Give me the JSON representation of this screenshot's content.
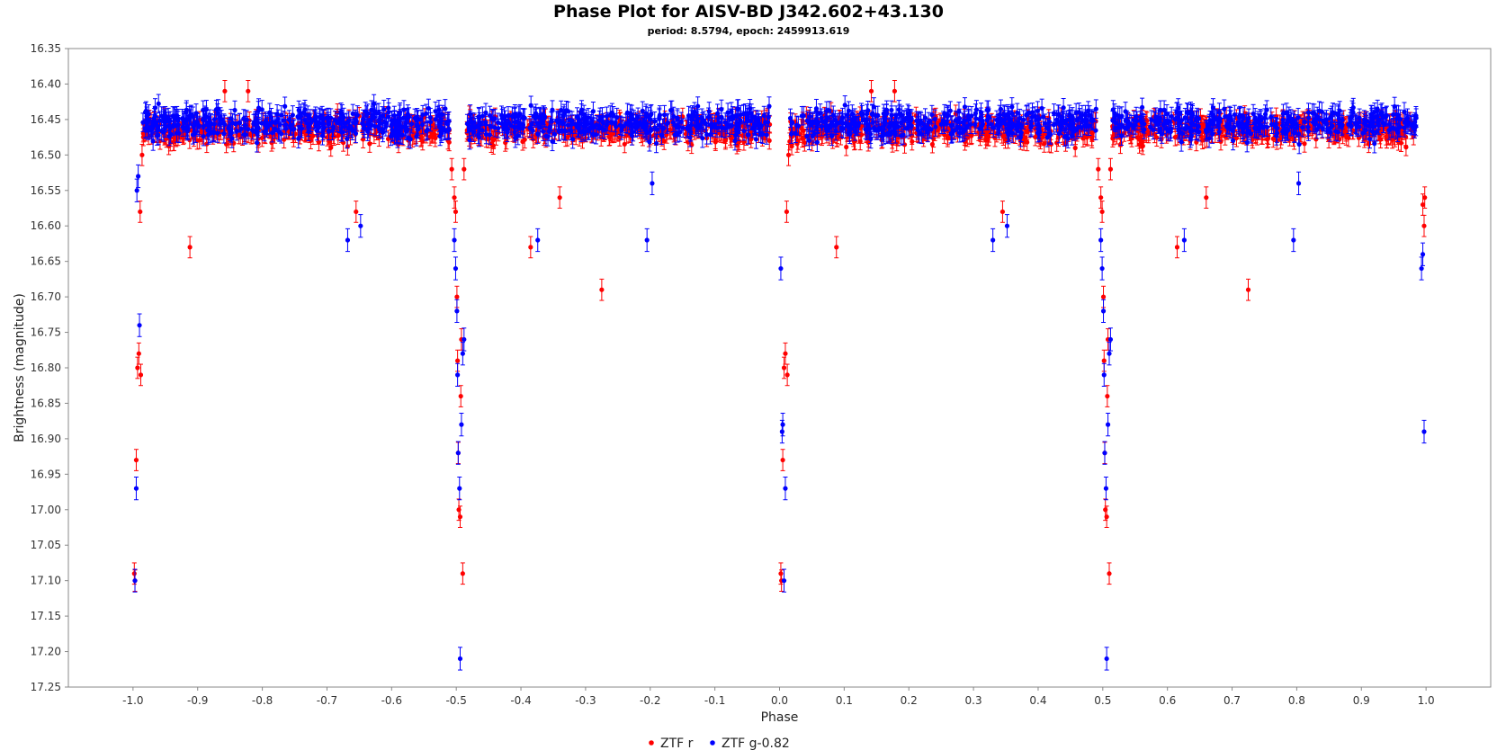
{
  "chart_data": {
    "type": "scatter",
    "title": "Phase Plot for AISV-BD J342.602+43.130",
    "subtitle": "period: 8.5794, epoch: 2459913.619",
    "xlabel": "Phase",
    "ylabel": "Brightness (magnitude)",
    "xlim": [
      -1.1,
      1.1
    ],
    "ylim": [
      16.35,
      17.25
    ],
    "y_inverted": true,
    "x_ticks": [
      -1.0,
      -0.9,
      -0.8,
      -0.7,
      -0.6,
      -0.5,
      -0.4,
      -0.3,
      -0.2,
      -0.1,
      0.0,
      0.1,
      0.2,
      0.3,
      0.4,
      0.5,
      0.6,
      0.7,
      0.8,
      0.9,
      1.0
    ],
    "x_tick_labels": [
      "-1.0",
      "-0.9",
      "-0.8",
      "-0.7",
      "-0.6",
      "-0.5",
      "-0.4",
      "-0.3",
      "-0.2",
      "-0.1",
      "0.0",
      "0.1",
      "0.2",
      "0.3",
      "0.4",
      "0.5",
      "0.6",
      "0.7",
      "0.8",
      "0.9",
      "1.0"
    ],
    "y_ticks": [
      16.35,
      16.4,
      16.45,
      16.5,
      16.55,
      16.6,
      16.65,
      16.7,
      16.75,
      16.8,
      16.85,
      16.9,
      16.95,
      17.0,
      17.05,
      17.1,
      17.15,
      17.2,
      17.25
    ],
    "y_tick_labels": [
      "16.35",
      "16.40",
      "16.45",
      "16.50",
      "16.55",
      "16.60",
      "16.65",
      "16.70",
      "16.75",
      "16.80",
      "16.85",
      "16.90",
      "16.95",
      "17.00",
      "17.05",
      "17.10",
      "17.15",
      "17.20",
      "17.25"
    ],
    "grid": false,
    "legend_position": "bottom-center",
    "series": [
      {
        "name": "ZTF r",
        "color": "#ff0000",
        "baseline_mag": 16.465,
        "scatter": 0.018,
        "error": 0.012,
        "x": [
          -0.998,
          -0.997,
          -0.995,
          -0.993,
          -0.991,
          -0.989,
          -0.988,
          -0.986,
          -0.912,
          -0.858,
          -0.822,
          -0.655,
          -0.507,
          -0.503,
          -0.501,
          -0.499,
          -0.498,
          -0.497,
          -0.496,
          -0.494,
          -0.493,
          -0.492,
          -0.49,
          -0.488,
          -0.385,
          -0.34,
          -0.275,
          0.002,
          0.003,
          0.005,
          0.007,
          0.009,
          0.011,
          0.012,
          0.014,
          0.088,
          0.142,
          0.178,
          0.345,
          0.493,
          0.497,
          0.499,
          0.501,
          0.502,
          0.503,
          0.504,
          0.506,
          0.507,
          0.508,
          0.51,
          0.512,
          0.615,
          0.66,
          0.725,
          0.995,
          0.997,
          0.998
        ],
        "y": [
          17.09,
          17.1,
          16.93,
          16.8,
          16.78,
          16.58,
          16.81,
          16.5,
          16.63,
          16.41,
          16.41,
          16.58,
          16.52,
          16.56,
          16.58,
          16.7,
          16.79,
          16.92,
          17.0,
          17.01,
          16.84,
          16.76,
          17.09,
          16.52,
          16.63,
          16.56,
          16.69,
          17.09,
          17.1,
          16.93,
          16.8,
          16.78,
          16.58,
          16.81,
          16.5,
          16.63,
          16.41,
          16.41,
          16.58,
          16.52,
          16.56,
          16.58,
          16.7,
          16.79,
          16.92,
          17.0,
          17.01,
          16.84,
          16.76,
          17.09,
          16.52,
          16.63,
          16.56,
          16.69,
          16.57,
          16.6,
          16.56
        ]
      },
      {
        "name": "ZTF g-0.82",
        "color": "#0000ff",
        "baseline_mag": 16.455,
        "scatter": 0.02,
        "error": 0.013,
        "x": [
          -0.997,
          -0.995,
          -0.994,
          -0.992,
          -0.99,
          -0.668,
          -0.648,
          -0.503,
          -0.501,
          -0.499,
          -0.498,
          -0.497,
          -0.495,
          -0.494,
          -0.492,
          -0.49,
          -0.488,
          -0.374,
          -0.205,
          -0.197,
          0.002,
          0.004,
          0.005,
          0.007,
          0.009,
          0.33,
          0.352,
          0.497,
          0.499,
          0.501,
          0.502,
          0.503,
          0.505,
          0.506,
          0.508,
          0.51,
          0.512,
          0.626,
          0.795,
          0.803,
          0.993,
          0.995,
          0.997
        ],
        "y": [
          17.1,
          16.97,
          16.55,
          16.53,
          16.74,
          16.62,
          16.6,
          16.62,
          16.66,
          16.72,
          16.81,
          16.92,
          16.97,
          17.21,
          16.88,
          16.78,
          16.76,
          16.62,
          16.62,
          16.54,
          16.66,
          16.89,
          16.88,
          17.1,
          16.97,
          16.62,
          16.6,
          16.62,
          16.66,
          16.72,
          16.81,
          16.92,
          16.97,
          17.21,
          16.88,
          16.78,
          16.76,
          16.62,
          16.62,
          16.54,
          16.66,
          16.64,
          16.89
        ]
      }
    ]
  }
}
